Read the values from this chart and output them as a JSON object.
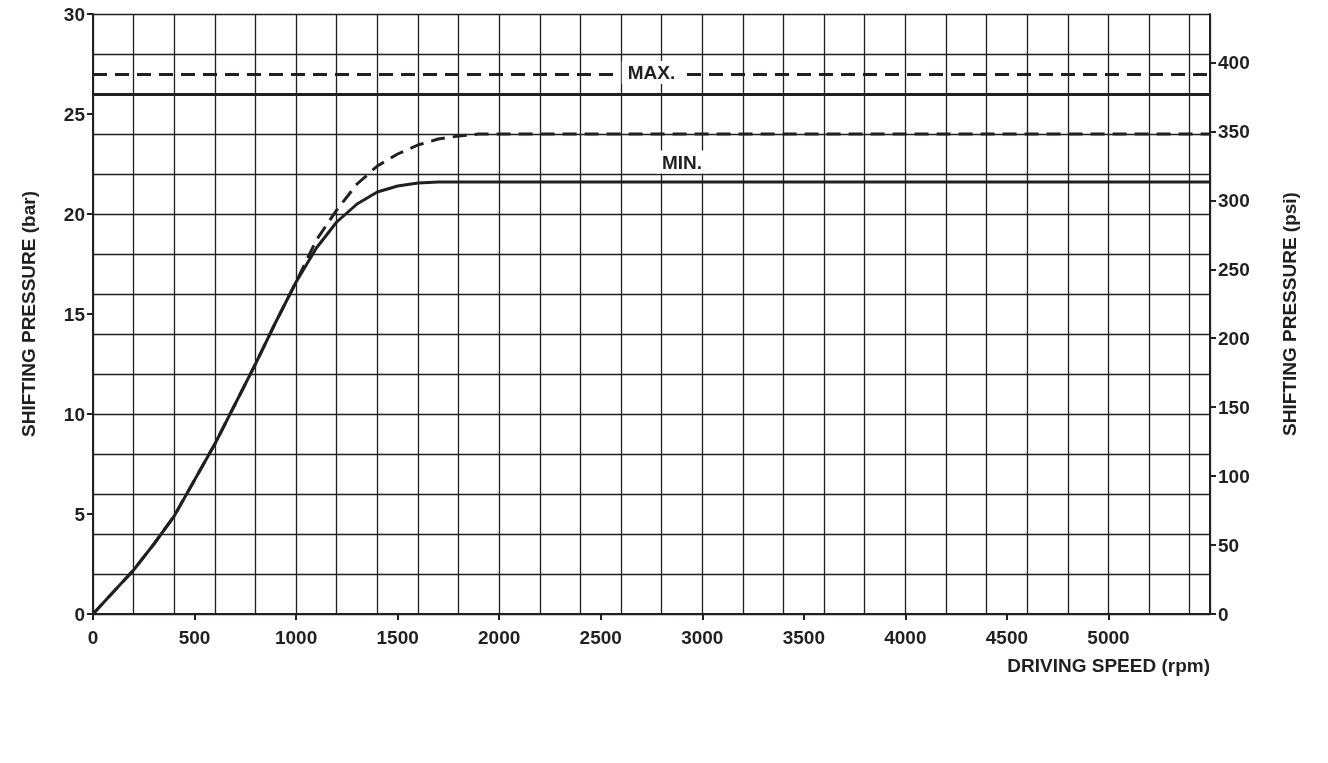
{
  "chart_data": {
    "type": "line",
    "xlabel": "DRIVING SPEED (rpm)",
    "ylabel": "SHIFTING PRESSURE (bar)",
    "y2label": "SHIFTING PRESSURE (psi)",
    "xlim": [
      0,
      5500
    ],
    "ylim": [
      0,
      30
    ],
    "y2lim": [
      0,
      435.1
    ],
    "xticks": [
      0,
      {
        "value": 200,
        "label": null
      },
      {
        "value": 400,
        "label": null
      },
      500,
      {
        "value": 600,
        "label": null
      },
      {
        "value": 800,
        "label": null
      },
      1000,
      {
        "value": 1200,
        "label": null
      },
      {
        "value": 1400,
        "label": null
      },
      1500,
      {
        "value": 1600,
        "label": null
      },
      {
        "value": 1800,
        "label": null
      },
      2000,
      {
        "value": 2200,
        "label": null
      },
      {
        "value": 2400,
        "label": null
      },
      2500,
      {
        "value": 2600,
        "label": null
      },
      {
        "value": 2800,
        "label": null
      },
      3000,
      {
        "value": 3200,
        "label": null
      },
      {
        "value": 3400,
        "label": null
      },
      3500,
      {
        "value": 3600,
        "label": null
      },
      {
        "value": 3800,
        "label": null
      },
      4000,
      {
        "value": 4200,
        "label": null
      },
      {
        "value": 4400,
        "label": null
      },
      4500,
      {
        "value": 4600,
        "label": null
      },
      {
        "value": 4800,
        "label": null
      },
      5000,
      {
        "value": 5200,
        "label": null
      },
      {
        "value": 5400,
        "label": null
      }
    ],
    "yticks": [
      0,
      {
        "value": 2,
        "label": null
      },
      {
        "value": 4,
        "label": null
      },
      5,
      {
        "value": 6,
        "label": null
      },
      {
        "value": 8,
        "label": null
      },
      10,
      {
        "value": 12,
        "label": null
      },
      {
        "value": 14,
        "label": null
      },
      15,
      {
        "value": 16,
        "label": null
      },
      {
        "value": 18,
        "label": null
      },
      20,
      {
        "value": 22,
        "label": null
      },
      {
        "value": 24,
        "label": null
      },
      25,
      {
        "value": 26,
        "label": null
      },
      {
        "value": 28,
        "label": null
      },
      30
    ],
    "y2ticks": [
      0,
      50,
      100,
      150,
      200,
      250,
      300,
      350,
      400
    ],
    "grid": true,
    "marker": "none",
    "series": [
      {
        "color": "#231f20",
        "line_style": "solid",
        "x": [
          0,
          100,
          200,
          300,
          400,
          500,
          600,
          700,
          800,
          900,
          1000,
          1100,
          1200,
          1300,
          1400,
          1500,
          1600,
          1700,
          5500
        ],
        "values": [
          0,
          1.1,
          2.2,
          3.5,
          4.9,
          6.7,
          8.5,
          10.5,
          12.5,
          14.6,
          16.6,
          18.3,
          19.6,
          20.5,
          21.1,
          21.4,
          21.55,
          21.6,
          21.6
        ]
      },
      {
        "color": "#231f20",
        "line_style": "dashed",
        "x": [
          0,
          100,
          200,
          300,
          400,
          500,
          600,
          700,
          800,
          900,
          1000,
          1100,
          1200,
          1300,
          1400,
          1500,
          1600,
          1700,
          1800,
          1900,
          2000,
          5500
        ],
        "values": [
          0,
          1.1,
          2.2,
          3.5,
          4.9,
          6.7,
          8.5,
          10.5,
          12.5,
          14.6,
          16.6,
          18.7,
          20.2,
          21.5,
          22.4,
          23,
          23.45,
          23.75,
          23.9,
          24,
          24,
          24
        ]
      }
    ],
    "ref_lines": [
      {
        "axis": "y",
        "value": 27,
        "label": "MAX.",
        "line_style": "dashed",
        "color": "#231f20"
      },
      {
        "axis": "y",
        "value": 26,
        "label": null,
        "line_style": "solid",
        "color": "#231f20"
      }
    ],
    "annotations": [
      {
        "text": "MIN.",
        "x": 2900,
        "y": 21.6
      }
    ]
  }
}
